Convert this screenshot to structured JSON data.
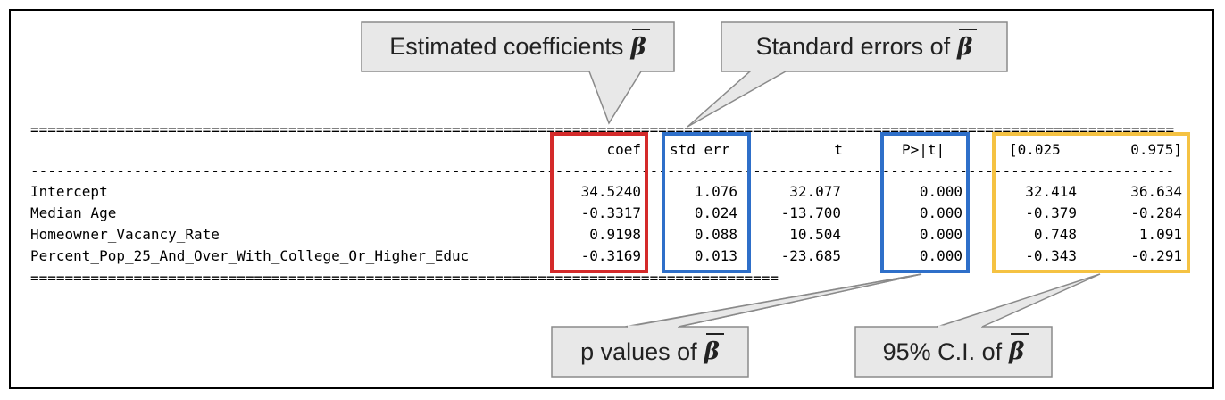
{
  "table": {
    "headers": {
      "coef": "coef",
      "std_err": "std err",
      "t": "t",
      "p": "P>|t|",
      "ci_low": "[0.025",
      "ci_high": "0.975]"
    },
    "rows": [
      {
        "name": "Intercept",
        "coef": "34.5240",
        "std_err": "1.076",
        "t": "32.077",
        "p": "0.000",
        "ci_low": "32.414",
        "ci_high": "36.634"
      },
      {
        "name": "Median_Age",
        "coef": "-0.3317",
        "std_err": "0.024",
        "t": "-13.700",
        "p": "0.000",
        "ci_low": "-0.379",
        "ci_high": "-0.284"
      },
      {
        "name": "Homeowner_Vacancy_Rate",
        "coef": "0.9198",
        "std_err": "0.088",
        "t": "10.504",
        "p": "0.000",
        "ci_low": "0.748",
        "ci_high": "1.091"
      },
      {
        "name": "Percent_Pop_25_And_Over_With_College_Or_Higher_Educ",
        "coef": "-0.3169",
        "std_err": "0.013",
        "t": "-23.685",
        "p": "0.000",
        "ci_low": "-0.343",
        "ci_high": "-0.291"
      }
    ]
  },
  "callouts": {
    "coef": {
      "text": "Estimated coefficients",
      "symbol": "β"
    },
    "std_err": {
      "text": "Standard errors of",
      "symbol": "β"
    },
    "p": {
      "text": "p values of",
      "symbol": "β"
    },
    "ci": {
      "text": "95% C.I. of",
      "symbol": "β"
    }
  },
  "colors": {
    "coef_box": "#d42a2a",
    "std_err_box": "#2e6fc9",
    "p_box": "#2e6fc9",
    "ci_box": "#f5c242",
    "callout_fill": "#e8e8e8",
    "callout_stroke": "#8a8a8a"
  },
  "rules": {
    "double": "=",
    "single": "-"
  }
}
